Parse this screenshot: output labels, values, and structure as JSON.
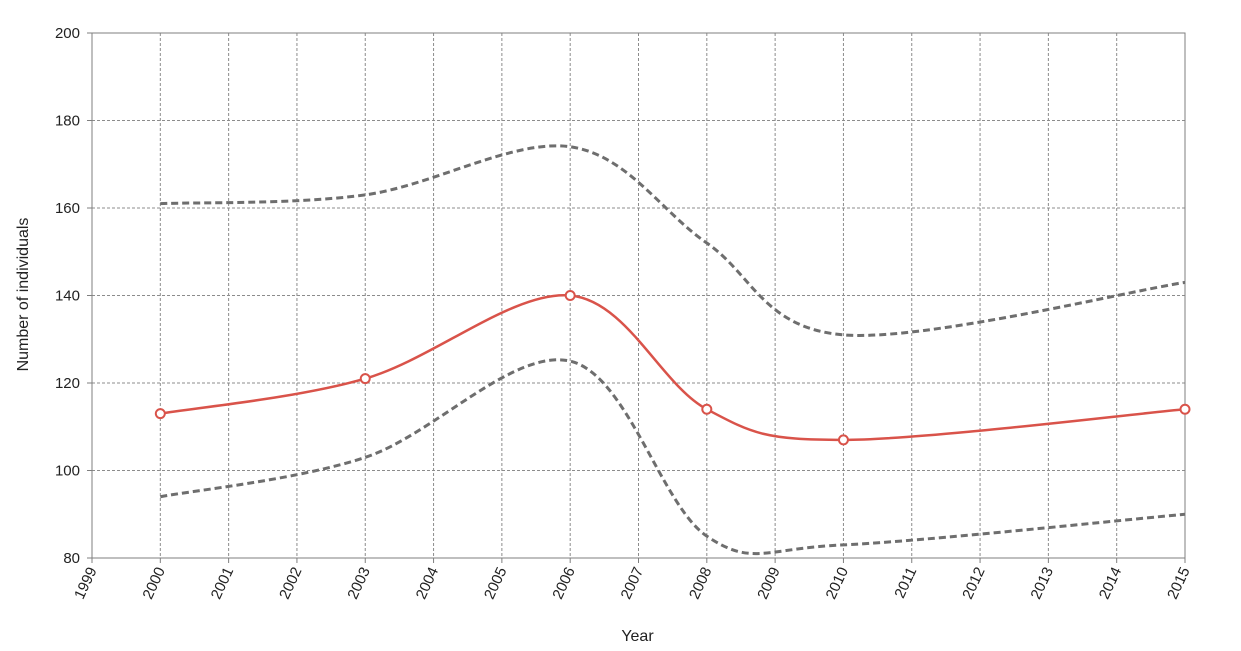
{
  "chart_data": {
    "type": "line",
    "title": "",
    "xlabel": "Year",
    "ylabel": "Number of individuals",
    "xlim": [
      1999,
      2015
    ],
    "ylim": [
      80,
      200
    ],
    "x_ticks": [
      "1999",
      "2000",
      "2001",
      "2002",
      "2003",
      "2004",
      "2005",
      "2006",
      "2007",
      "2008",
      "2009",
      "2010",
      "2011",
      "2012",
      "2013",
      "2014",
      "2015"
    ],
    "y_ticks": [
      "80",
      "100",
      "120",
      "140",
      "160",
      "180",
      "200"
    ],
    "grid": true,
    "legend": "none",
    "series": [
      {
        "role": "estimate",
        "color": "#d9534a",
        "style": "solid",
        "markers": "open-circle",
        "points": [
          [
            2000,
            113
          ],
          [
            2003,
            121
          ],
          [
            2006,
            140
          ],
          [
            2008,
            114
          ],
          [
            2010,
            107
          ],
          [
            2015,
            114
          ]
        ]
      },
      {
        "role": "upper-bound",
        "color": "#6e6e6e",
        "style": "dashed",
        "markers": "none",
        "points": [
          [
            2000,
            161
          ],
          [
            2003,
            163
          ],
          [
            2006,
            174
          ],
          [
            2008,
            152
          ],
          [
            2010,
            131
          ],
          [
            2015,
            143
          ]
        ]
      },
      {
        "role": "lower-bound",
        "color": "#6e6e6e",
        "style": "dashed",
        "markers": "none",
        "points": [
          [
            2000,
            94
          ],
          [
            2003,
            103
          ],
          [
            2006,
            125
          ],
          [
            2008,
            85
          ],
          [
            2010,
            83
          ],
          [
            2015,
            90
          ]
        ]
      }
    ]
  }
}
